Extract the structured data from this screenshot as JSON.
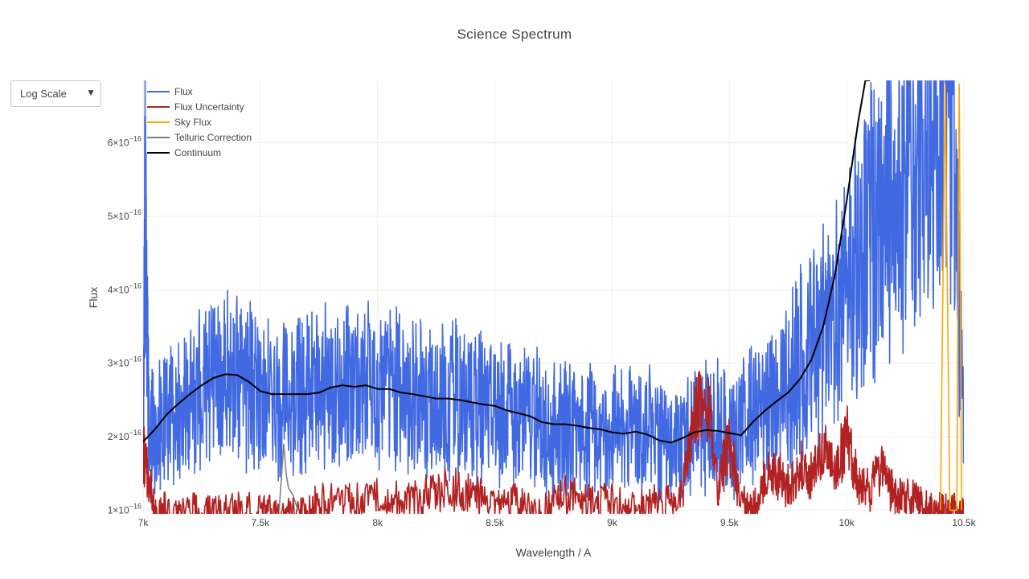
{
  "dropdown": {
    "label": "Log Scale",
    "caret": "▼"
  },
  "chart_data": {
    "type": "line",
    "title": "Science Spectrum",
    "xlabel": "Wavelength / A",
    "ylabel": "Flux",
    "xlim": [
      7000,
      10500
    ],
    "ylim": [
      9.5e-17,
      6.85e-16
    ],
    "grid": true,
    "legend_position": "top-left",
    "x_ticks": [
      {
        "value": 7000,
        "label": "7k"
      },
      {
        "value": 7500,
        "label": "7.5k"
      },
      {
        "value": 8000,
        "label": "8k"
      },
      {
        "value": 8500,
        "label": "8.5k"
      },
      {
        "value": 9000,
        "label": "9k"
      },
      {
        "value": 9500,
        "label": "9.5k"
      },
      {
        "value": 10000,
        "label": "10k"
      },
      {
        "value": 10500,
        "label": "10.5k"
      }
    ],
    "y_ticks": [
      {
        "value": 1e-16,
        "mantissa": "1",
        "exp": "−16"
      },
      {
        "value": 2e-16,
        "mantissa": "2",
        "exp": "−16"
      },
      {
        "value": 3e-16,
        "mantissa": "3",
        "exp": "−16"
      },
      {
        "value": 4e-16,
        "mantissa": "4",
        "exp": "−16"
      },
      {
        "value": 5e-16,
        "mantissa": "5",
        "exp": "−16"
      },
      {
        "value": 6e-16,
        "mantissa": "6",
        "exp": "−16"
      }
    ],
    "series": [
      {
        "name": "Flux",
        "color": "#4169e1",
        "x": [
          7000,
          7010,
          7025,
          7050,
          7100,
          7150,
          7200,
          7250,
          7300,
          7350,
          7400,
          7450,
          7500,
          7550,
          7600,
          7650,
          7700,
          7750,
          7800,
          7850,
          7900,
          7950,
          8000,
          8050,
          8100,
          8150,
          8200,
          8250,
          8300,
          8350,
          8400,
          8450,
          8500,
          8550,
          8600,
          8650,
          8700,
          8750,
          8800,
          8850,
          8900,
          8950,
          9000,
          9050,
          9100,
          9150,
          9200,
          9250,
          9300,
          9350,
          9400,
          9450,
          9500,
          9550,
          9600,
          9650,
          9700,
          9750,
          9800,
          9850,
          9900,
          9950,
          10000,
          10050,
          10100,
          10150,
          10200,
          10250,
          10300,
          10350,
          10400,
          10450,
          10500
        ],
        "y": [
          2e-16,
          5.5e-16,
          2e-16,
          2.2e-16,
          2.3e-16,
          2.5e-16,
          2.4e-16,
          2.7e-16,
          2.8e-16,
          2.8e-16,
          2.9e-16,
          2.7e-16,
          2.8e-16,
          2.6e-16,
          2.5e-16,
          2.7e-16,
          2.6e-16,
          2.6e-16,
          2.7e-16,
          2.6e-16,
          2.7e-16,
          2.7e-16,
          2.7e-16,
          2.7e-16,
          2.6e-16,
          2.6e-16,
          2.5e-16,
          2.4e-16,
          2.5e-16,
          2.5e-16,
          2.4e-16,
          2.4e-16,
          2.3e-16,
          2.3e-16,
          2.2e-16,
          2.3e-16,
          2.2e-16,
          2.1e-16,
          2.1e-16,
          2.1e-16,
          2.1e-16,
          2e-16,
          2.1e-16,
          2e-16,
          2.1e-16,
          2.1e-16,
          1.9e-16,
          1.8e-16,
          2e-16,
          2.1e-16,
          2.1e-16,
          2.2e-16,
          2e-16,
          2.2e-16,
          2.3e-16,
          2.4e-16,
          2.6e-16,
          2.8e-16,
          3e-16,
          3.1e-16,
          3.4e-16,
          3.6e-16,
          3.9e-16,
          4.4e-16,
          4.8e-16,
          5e-16,
          5.5e-16,
          5.6e-16,
          5.8e-16,
          5.9e-16,
          6.5e-16,
          6.6e-16,
          2.3e-16
        ]
      },
      {
        "name": "Flux Uncertainty",
        "color": "#b22222",
        "x": [
          7000,
          7020,
          7050,
          7100,
          7200,
          7300,
          7400,
          7500,
          7600,
          7700,
          7800,
          7900,
          8000,
          8100,
          8200,
          8300,
          8400,
          8500,
          8600,
          8700,
          8800,
          8900,
          9000,
          9100,
          9200,
          9300,
          9350,
          9400,
          9450,
          9500,
          9550,
          9600,
          9650,
          9700,
          9750,
          9800,
          9850,
          9900,
          9950,
          10000,
          10050,
          10100,
          10150,
          10200,
          10250,
          10300,
          10350,
          10400,
          10450,
          10500
        ],
        "y": [
          1.8e-16,
          1.5e-16,
          1e-16,
          1e-16,
          1e-16,
          1e-16,
          1e-16,
          1e-16,
          1e-16,
          1e-16,
          1.2e-16,
          1.1e-16,
          1.2e-16,
          1.1e-16,
          1.2e-16,
          1.3e-16,
          1.2e-16,
          1.1e-16,
          1.1e-16,
          1e-16,
          1.2e-16,
          1.1e-16,
          1.1e-16,
          1e-16,
          1.1e-16,
          1.2e-16,
          2.3e-16,
          2.6e-16,
          1.3e-16,
          1.9e-16,
          1.1e-16,
          1e-16,
          1.4e-16,
          1.5e-16,
          1.3e-16,
          1.6e-16,
          1.5e-16,
          1.8e-16,
          1.5e-16,
          2e-16,
          1.4e-16,
          1.3e-16,
          1.6e-16,
          1.2e-16,
          1.2e-16,
          1.1e-16,
          1e-16,
          1e-16,
          1e-16,
          1e-16
        ]
      },
      {
        "name": "Sky Flux",
        "color": "#ffa500",
        "x": [
          10400,
          10420,
          10440,
          10470,
          10480,
          10490
        ],
        "y": [
          1e-16,
          6.8e-16,
          1e-16,
          1e-16,
          6.8e-16,
          1e-16
        ]
      },
      {
        "name": "Telluric Correction",
        "color": "#808080",
        "x": [
          7580,
          7600,
          7610,
          7620,
          7640,
          7660
        ],
        "y": [
          1e-16,
          1.9e-16,
          1.5e-16,
          1.3e-16,
          1.2e-16,
          1e-16
        ]
      },
      {
        "name": "Continuum",
        "color": "#000000",
        "x": [
          7000,
          7050,
          7100,
          7150,
          7200,
          7250,
          7300,
          7350,
          7400,
          7450,
          7500,
          7550,
          7600,
          7650,
          7700,
          7750,
          7800,
          7850,
          7900,
          7950,
          8000,
          8050,
          8100,
          8150,
          8200,
          8250,
          8300,
          8350,
          8400,
          8450,
          8500,
          8550,
          8600,
          8650,
          8700,
          8750,
          8800,
          8850,
          8900,
          8950,
          9000,
          9050,
          9100,
          9150,
          9200,
          9250,
          9300,
          9350,
          9400,
          9450,
          9500,
          9550,
          9600,
          9650,
          9700,
          9750,
          9800,
          9850,
          9900,
          9950,
          10000,
          10050,
          10080,
          10100
        ],
        "y": [
          1.93e-16,
          2.1e-16,
          2.3e-16,
          2.45e-16,
          2.58e-16,
          2.7e-16,
          2.8e-16,
          2.85e-16,
          2.84e-16,
          2.75e-16,
          2.62e-16,
          2.58e-16,
          2.58e-16,
          2.58e-16,
          2.58e-16,
          2.6e-16,
          2.67e-16,
          2.7e-16,
          2.68e-16,
          2.7e-16,
          2.65e-16,
          2.65e-16,
          2.6e-16,
          2.58e-16,
          2.55e-16,
          2.52e-16,
          2.52e-16,
          2.5e-16,
          2.47e-16,
          2.44e-16,
          2.42e-16,
          2.36e-16,
          2.32e-16,
          2.28e-16,
          2.2e-16,
          2.17e-16,
          2.17e-16,
          2.15e-16,
          2.12e-16,
          2.1e-16,
          2.06e-16,
          2.04e-16,
          2.07e-16,
          2.03e-16,
          1.95e-16,
          1.92e-16,
          1.98e-16,
          2.06e-16,
          2.09e-16,
          2.08e-16,
          2.05e-16,
          2.02e-16,
          2.2e-16,
          2.35e-16,
          2.48e-16,
          2.6e-16,
          2.78e-16,
          3.05e-16,
          3.5e-16,
          4.2e-16,
          5.2e-16,
          6.3e-16,
          6.85e-16,
          6.85e-16
        ]
      }
    ]
  }
}
